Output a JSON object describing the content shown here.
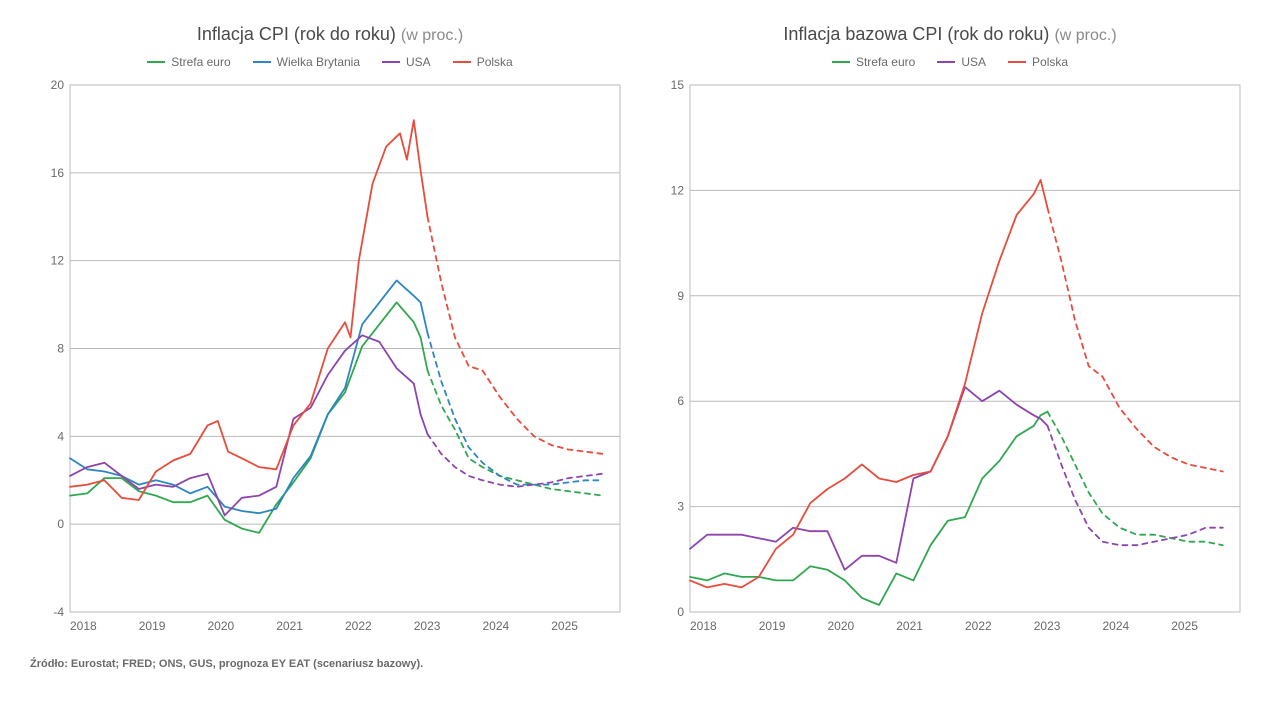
{
  "footnote": "Źródło: Eurostat; FRED; ONS, GUS, prognoza EY EAT (scenariusz bazowy).",
  "chart_left": {
    "type": "line",
    "title_main": "Inflacja CPI (rok do roku)",
    "title_unit": "(w proc.)",
    "title_fontsize": 18,
    "unit_fontsize": 16,
    "label_fontsize": 12,
    "background_color": "#ffffff",
    "grid_color": "#bbbbbb",
    "text_color": "#6a6a6a",
    "line_width": 1.8,
    "dash_pattern": "5,5",
    "x_years": [
      2018,
      2019,
      2020,
      2021,
      2022,
      2023,
      2024,
      2025
    ],
    "xlim": [
      2018,
      2026
    ],
    "ylim": [
      -4,
      20
    ],
    "ytick_step": 4,
    "series": [
      {
        "name": "Strefa euro",
        "color": "#2fa84f",
        "solid_end_x": 2023.2,
        "points": [
          [
            2018.0,
            1.3
          ],
          [
            2018.25,
            1.4
          ],
          [
            2018.5,
            2.1
          ],
          [
            2018.75,
            2.1
          ],
          [
            2019.0,
            1.5
          ],
          [
            2019.25,
            1.3
          ],
          [
            2019.5,
            1.0
          ],
          [
            2019.75,
            1.0
          ],
          [
            2020.0,
            1.3
          ],
          [
            2020.25,
            0.2
          ],
          [
            2020.5,
            -0.2
          ],
          [
            2020.75,
            -0.4
          ],
          [
            2021.0,
            0.9
          ],
          [
            2021.25,
            1.9
          ],
          [
            2021.5,
            3.0
          ],
          [
            2021.75,
            5.0
          ],
          [
            2022.0,
            6.0
          ],
          [
            2022.25,
            8.1
          ],
          [
            2022.5,
            9.1
          ],
          [
            2022.75,
            10.1
          ],
          [
            2023.0,
            9.2
          ],
          [
            2023.1,
            8.5
          ],
          [
            2023.2,
            7.0
          ],
          [
            2023.4,
            5.4
          ],
          [
            2023.6,
            4.3
          ],
          [
            2023.8,
            3.0
          ],
          [
            2024.0,
            2.6
          ],
          [
            2024.25,
            2.2
          ],
          [
            2024.5,
            2.0
          ],
          [
            2024.75,
            1.8
          ],
          [
            2025.0,
            1.6
          ],
          [
            2025.25,
            1.5
          ],
          [
            2025.5,
            1.4
          ],
          [
            2025.75,
            1.3
          ]
        ]
      },
      {
        "name": "Wielka Brytania",
        "color": "#2e86c1",
        "solid_end_x": 2023.2,
        "points": [
          [
            2018.0,
            3.0
          ],
          [
            2018.25,
            2.5
          ],
          [
            2018.5,
            2.4
          ],
          [
            2018.75,
            2.2
          ],
          [
            2019.0,
            1.8
          ],
          [
            2019.25,
            2.0
          ],
          [
            2019.5,
            1.8
          ],
          [
            2019.75,
            1.4
          ],
          [
            2020.0,
            1.7
          ],
          [
            2020.25,
            0.8
          ],
          [
            2020.5,
            0.6
          ],
          [
            2020.75,
            0.5
          ],
          [
            2021.0,
            0.7
          ],
          [
            2021.25,
            2.1
          ],
          [
            2021.5,
            3.1
          ],
          [
            2021.75,
            5.0
          ],
          [
            2022.0,
            6.2
          ],
          [
            2022.25,
            9.1
          ],
          [
            2022.5,
            10.1
          ],
          [
            2022.75,
            11.1
          ],
          [
            2023.0,
            10.4
          ],
          [
            2023.1,
            10.1
          ],
          [
            2023.2,
            8.7
          ],
          [
            2023.4,
            6.5
          ],
          [
            2023.6,
            4.8
          ],
          [
            2023.8,
            3.5
          ],
          [
            2024.0,
            2.8
          ],
          [
            2024.25,
            2.2
          ],
          [
            2024.5,
            1.8
          ],
          [
            2024.75,
            1.8
          ],
          [
            2025.0,
            1.8
          ],
          [
            2025.25,
            1.9
          ],
          [
            2025.5,
            2.0
          ],
          [
            2025.75,
            2.0
          ]
        ]
      },
      {
        "name": "USA",
        "color": "#8e44ad",
        "solid_end_x": 2023.2,
        "points": [
          [
            2018.0,
            2.2
          ],
          [
            2018.25,
            2.6
          ],
          [
            2018.5,
            2.8
          ],
          [
            2018.75,
            2.2
          ],
          [
            2019.0,
            1.6
          ],
          [
            2019.25,
            1.8
          ],
          [
            2019.5,
            1.7
          ],
          [
            2019.75,
            2.1
          ],
          [
            2020.0,
            2.3
          ],
          [
            2020.25,
            0.4
          ],
          [
            2020.5,
            1.2
          ],
          [
            2020.75,
            1.3
          ],
          [
            2021.0,
            1.7
          ],
          [
            2021.25,
            4.8
          ],
          [
            2021.5,
            5.3
          ],
          [
            2021.75,
            6.8
          ],
          [
            2022.0,
            7.9
          ],
          [
            2022.25,
            8.6
          ],
          [
            2022.5,
            8.3
          ],
          [
            2022.75,
            7.1
          ],
          [
            2023.0,
            6.4
          ],
          [
            2023.1,
            5.0
          ],
          [
            2023.2,
            4.1
          ],
          [
            2023.4,
            3.2
          ],
          [
            2023.6,
            2.6
          ],
          [
            2023.8,
            2.2
          ],
          [
            2024.0,
            2.0
          ],
          [
            2024.25,
            1.8
          ],
          [
            2024.5,
            1.7
          ],
          [
            2024.75,
            1.8
          ],
          [
            2025.0,
            1.9
          ],
          [
            2025.25,
            2.1
          ],
          [
            2025.5,
            2.2
          ],
          [
            2025.75,
            2.3
          ]
        ]
      },
      {
        "name": "Polska",
        "color": "#e74c3c",
        "solid_end_x": 2023.2,
        "points": [
          [
            2018.0,
            1.7
          ],
          [
            2018.25,
            1.8
          ],
          [
            2018.5,
            2.0
          ],
          [
            2018.75,
            1.2
          ],
          [
            2019.0,
            1.1
          ],
          [
            2019.25,
            2.4
          ],
          [
            2019.5,
            2.9
          ],
          [
            2019.75,
            3.2
          ],
          [
            2020.0,
            4.5
          ],
          [
            2020.15,
            4.7
          ],
          [
            2020.3,
            3.3
          ],
          [
            2020.5,
            3.0
          ],
          [
            2020.75,
            2.6
          ],
          [
            2021.0,
            2.5
          ],
          [
            2021.25,
            4.5
          ],
          [
            2021.5,
            5.5
          ],
          [
            2021.75,
            8.0
          ],
          [
            2022.0,
            9.2
          ],
          [
            2022.08,
            8.5
          ],
          [
            2022.2,
            12.0
          ],
          [
            2022.4,
            15.5
          ],
          [
            2022.6,
            17.2
          ],
          [
            2022.8,
            17.8
          ],
          [
            2022.9,
            16.6
          ],
          [
            2023.0,
            18.4
          ],
          [
            2023.1,
            16.1
          ],
          [
            2023.2,
            14.0
          ],
          [
            2023.4,
            11.0
          ],
          [
            2023.6,
            8.5
          ],
          [
            2023.8,
            7.2
          ],
          [
            2024.0,
            7.0
          ],
          [
            2024.25,
            5.8
          ],
          [
            2024.5,
            4.8
          ],
          [
            2024.75,
            4.0
          ],
          [
            2025.0,
            3.6
          ],
          [
            2025.25,
            3.4
          ],
          [
            2025.5,
            3.3
          ],
          [
            2025.75,
            3.2
          ]
        ]
      }
    ]
  },
  "chart_right": {
    "type": "line",
    "title_main": "Inflacja bazowa CPI (rok do roku)",
    "title_unit": "(w proc.)",
    "title_fontsize": 18,
    "unit_fontsize": 16,
    "label_fontsize": 12,
    "background_color": "#ffffff",
    "grid_color": "#bbbbbb",
    "text_color": "#6a6a6a",
    "line_width": 1.8,
    "dash_pattern": "5,5",
    "x_years": [
      2018,
      2019,
      2020,
      2021,
      2022,
      2023,
      2024,
      2025
    ],
    "xlim": [
      2018,
      2026
    ],
    "ylim": [
      0,
      15
    ],
    "ytick_step": 3,
    "series": [
      {
        "name": "Strefa euro",
        "color": "#2fa84f",
        "solid_end_x": 2023.2,
        "points": [
          [
            2018.0,
            1.0
          ],
          [
            2018.25,
            0.9
          ],
          [
            2018.5,
            1.1
          ],
          [
            2018.75,
            1.0
          ],
          [
            2019.0,
            1.0
          ],
          [
            2019.25,
            0.9
          ],
          [
            2019.5,
            0.9
          ],
          [
            2019.75,
            1.3
          ],
          [
            2020.0,
            1.2
          ],
          [
            2020.25,
            0.9
          ],
          [
            2020.5,
            0.4
          ],
          [
            2020.75,
            0.2
          ],
          [
            2021.0,
            1.1
          ],
          [
            2021.25,
            0.9
          ],
          [
            2021.5,
            1.9
          ],
          [
            2021.75,
            2.6
          ],
          [
            2022.0,
            2.7
          ],
          [
            2022.25,
            3.8
          ],
          [
            2022.5,
            4.3
          ],
          [
            2022.75,
            5.0
          ],
          [
            2023.0,
            5.3
          ],
          [
            2023.1,
            5.6
          ],
          [
            2023.2,
            5.7
          ],
          [
            2023.4,
            5.0
          ],
          [
            2023.6,
            4.2
          ],
          [
            2023.8,
            3.4
          ],
          [
            2024.0,
            2.8
          ],
          [
            2024.25,
            2.4
          ],
          [
            2024.5,
            2.2
          ],
          [
            2024.75,
            2.2
          ],
          [
            2025.0,
            2.1
          ],
          [
            2025.25,
            2.0
          ],
          [
            2025.5,
            2.0
          ],
          [
            2025.75,
            1.9
          ]
        ]
      },
      {
        "name": "USA",
        "color": "#8e44ad",
        "solid_end_x": 2023.2,
        "points": [
          [
            2018.0,
            1.8
          ],
          [
            2018.25,
            2.2
          ],
          [
            2018.5,
            2.2
          ],
          [
            2018.75,
            2.2
          ],
          [
            2019.0,
            2.1
          ],
          [
            2019.25,
            2.0
          ],
          [
            2019.5,
            2.4
          ],
          [
            2019.75,
            2.3
          ],
          [
            2020.0,
            2.3
          ],
          [
            2020.25,
            1.2
          ],
          [
            2020.5,
            1.6
          ],
          [
            2020.75,
            1.6
          ],
          [
            2021.0,
            1.4
          ],
          [
            2021.25,
            3.8
          ],
          [
            2021.5,
            4.0
          ],
          [
            2021.75,
            5.0
          ],
          [
            2022.0,
            6.4
          ],
          [
            2022.25,
            6.0
          ],
          [
            2022.5,
            6.3
          ],
          [
            2022.75,
            5.9
          ],
          [
            2023.0,
            5.6
          ],
          [
            2023.1,
            5.5
          ],
          [
            2023.2,
            5.3
          ],
          [
            2023.4,
            4.2
          ],
          [
            2023.6,
            3.2
          ],
          [
            2023.8,
            2.4
          ],
          [
            2024.0,
            2.0
          ],
          [
            2024.25,
            1.9
          ],
          [
            2024.5,
            1.9
          ],
          [
            2024.75,
            2.0
          ],
          [
            2025.0,
            2.1
          ],
          [
            2025.25,
            2.2
          ],
          [
            2025.5,
            2.4
          ],
          [
            2025.75,
            2.4
          ]
        ]
      },
      {
        "name": "Polska",
        "color": "#e74c3c",
        "solid_end_x": 2023.2,
        "points": [
          [
            2018.0,
            0.9
          ],
          [
            2018.25,
            0.7
          ],
          [
            2018.5,
            0.8
          ],
          [
            2018.75,
            0.7
          ],
          [
            2019.0,
            1.0
          ],
          [
            2019.25,
            1.8
          ],
          [
            2019.5,
            2.2
          ],
          [
            2019.75,
            3.1
          ],
          [
            2020.0,
            3.5
          ],
          [
            2020.25,
            3.8
          ],
          [
            2020.5,
            4.2
          ],
          [
            2020.75,
            3.8
          ],
          [
            2021.0,
            3.7
          ],
          [
            2021.25,
            3.9
          ],
          [
            2021.5,
            4.0
          ],
          [
            2021.75,
            5.0
          ],
          [
            2022.0,
            6.5
          ],
          [
            2022.25,
            8.5
          ],
          [
            2022.5,
            10.0
          ],
          [
            2022.75,
            11.3
          ],
          [
            2023.0,
            11.9
          ],
          [
            2023.1,
            12.3
          ],
          [
            2023.2,
            11.5
          ],
          [
            2023.4,
            10.0
          ],
          [
            2023.6,
            8.3
          ],
          [
            2023.8,
            7.0
          ],
          [
            2024.0,
            6.7
          ],
          [
            2024.25,
            5.8
          ],
          [
            2024.5,
            5.2
          ],
          [
            2024.75,
            4.7
          ],
          [
            2025.0,
            4.4
          ],
          [
            2025.25,
            4.2
          ],
          [
            2025.5,
            4.1
          ],
          [
            2025.75,
            4.0
          ]
        ]
      }
    ]
  }
}
